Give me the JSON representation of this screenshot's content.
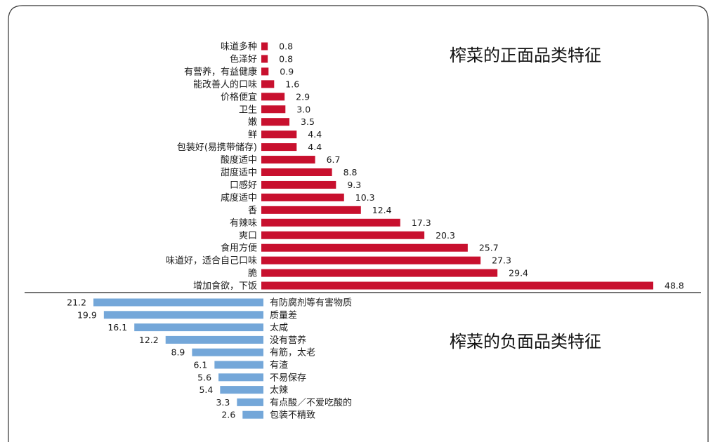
{
  "chart_data": [
    {
      "type": "bar",
      "orientation": "horizontal",
      "title": "榨菜的正面品类特征",
      "categories": [
        "味道多种",
        "色泽好",
        "有营养，有益健康",
        "能改善人的口味",
        "价格便宜",
        "卫生",
        "嫩",
        "鲜",
        "包装好(易携带储存)",
        "酸度适中",
        "甜度适中",
        "口感好",
        "咸度适中",
        "香",
        "有辣味",
        "爽口",
        "食用方便",
        "味道好，适合自己口味",
        "脆",
        "增加食欲，下饭"
      ],
      "values": [
        0.8,
        0.8,
        0.9,
        1.6,
        2.9,
        3.0,
        3.5,
        4.4,
        4.4,
        6.7,
        8.8,
        9.3,
        10.3,
        12.4,
        17.3,
        20.3,
        25.7,
        27.3,
        29.4,
        48.8
      ],
      "value_labels": [
        "0.8",
        "0.8",
        "0.9",
        "1.6",
        "2.9",
        "3.0",
        "3.5",
        "4.4",
        "4.4",
        "6.7",
        "8.8",
        "9.3",
        "10.3",
        "12.4",
        "17.3",
        "20.3",
        "25.7",
        "27.3",
        "29.4",
        "48.8"
      ],
      "bar_direction": "right",
      "color": "#c8102e",
      "xlim": [
        0,
        48.8
      ]
    },
    {
      "type": "bar",
      "orientation": "horizontal",
      "title": "榨菜的负面品类特征",
      "categories": [
        "有防腐剂等有害物质",
        "质量差",
        "太咸",
        "没有营养",
        "有筋，太老",
        "有渣",
        "不易保存",
        "太辣",
        "有点酸／不爱吃酸的",
        "包装不精致"
      ],
      "values": [
        21.2,
        19.9,
        16.1,
        12.2,
        8.9,
        6.1,
        5.6,
        5.4,
        3.3,
        2.6
      ],
      "value_labels": [
        "21.2",
        "19.9",
        "16.1",
        "12.2",
        "8.9",
        "6.1",
        "5.6",
        "5.4",
        "3.3",
        "2.6"
      ],
      "bar_direction": "left",
      "color": "#74a7d9",
      "xlim": [
        0,
        21.2
      ]
    }
  ]
}
